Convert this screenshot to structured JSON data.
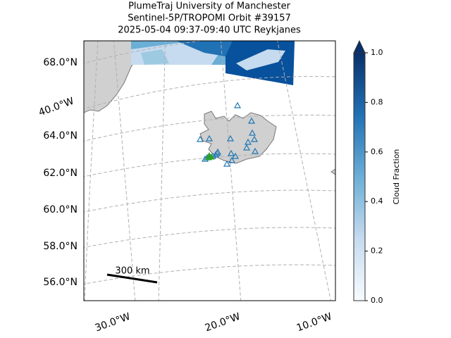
{
  "header": {
    "title_lines": [
      "PlumeTraj    University of Manchester",
      "Sentinel-5P/TROPOMI Orbit #39157",
      "2025-05-04   09:37-09:40 UTC   Reykjanes"
    ]
  },
  "map": {
    "lat_labels": [
      "68.0°N",
      "64.0°N",
      "62.0°N",
      "60.0°N",
      "58.0°N",
      "56.0°N"
    ],
    "lon_labels": [
      "40.0°W",
      "30.0°W",
      "20.0°W",
      "10.0°W"
    ],
    "scale_bar": "300 km"
  },
  "colorbar": {
    "label": "Cloud Fraction",
    "range": [
      0,
      1
    ],
    "ticks": [
      {
        "value": 0,
        "label": "0.0"
      },
      {
        "value": 0.2,
        "label": "0.2"
      },
      {
        "value": 0.4,
        "label": "0.4"
      },
      {
        "value": 0.6,
        "label": "0.6"
      },
      {
        "value": 0.8,
        "label": "0.8"
      },
      {
        "value": 1,
        "label": "1.0"
      }
    ]
  }
}
